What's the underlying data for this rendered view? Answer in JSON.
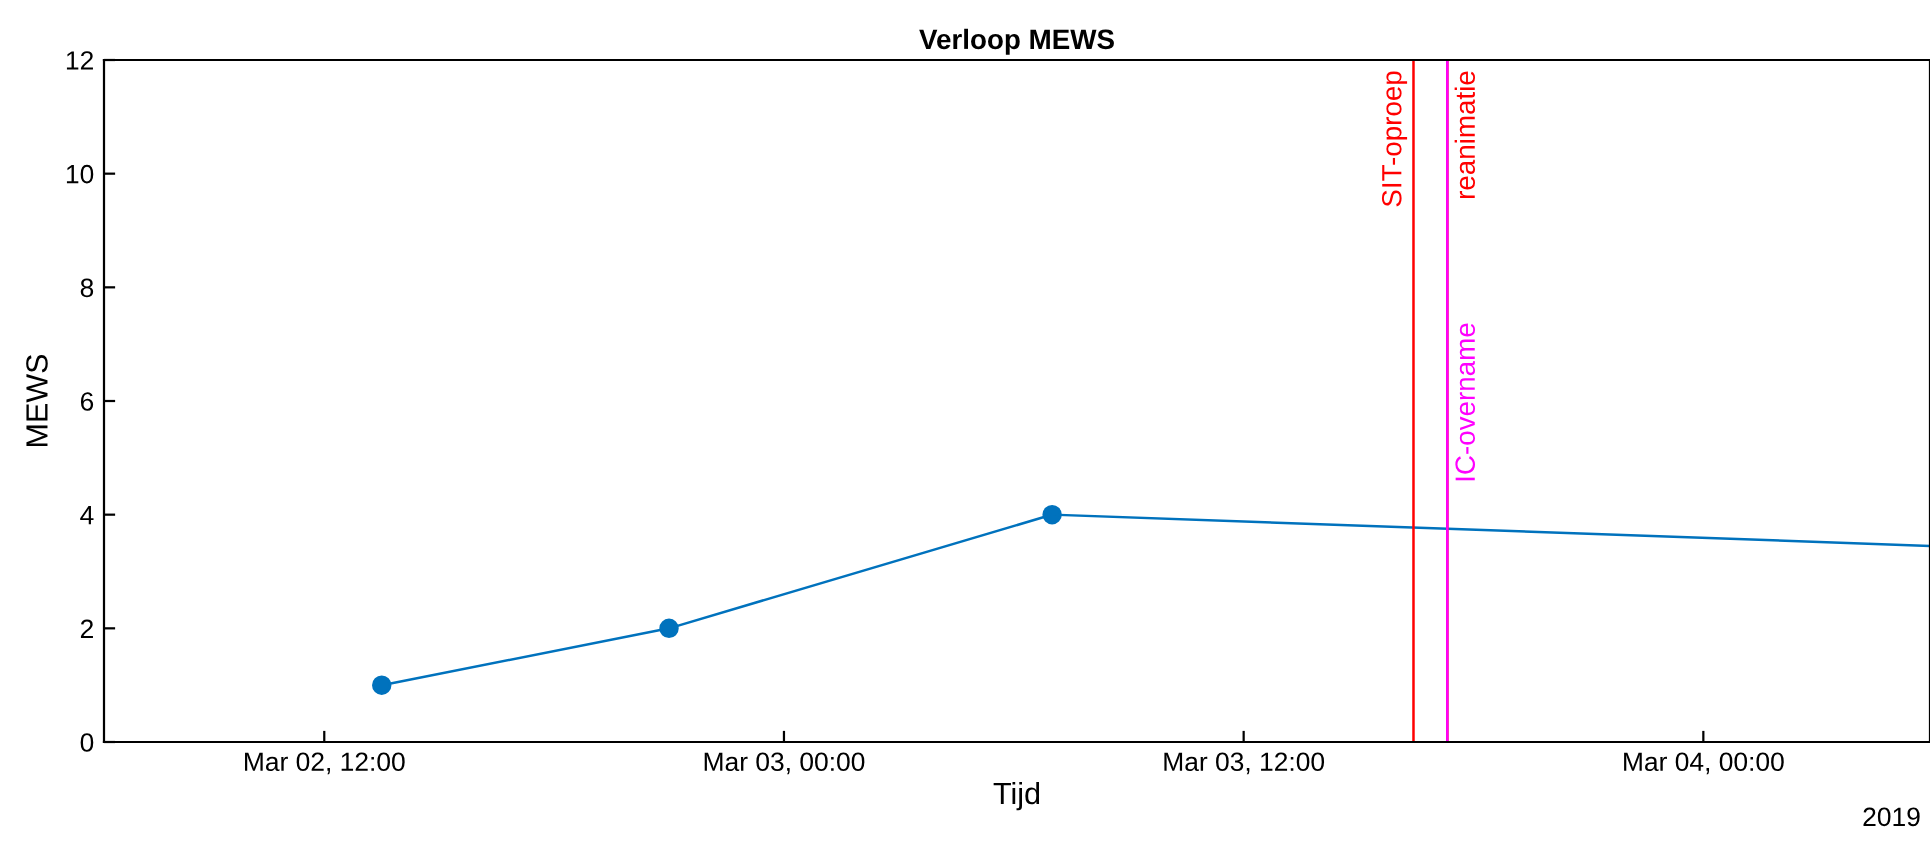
{
  "chart_data": {
    "type": "line",
    "title": "Verloop MEWS",
    "xlabel": "Tijd",
    "ylabel": "MEWS",
    "series": [
      {
        "color": "#0072bd",
        "marker": "circle",
        "x": [
          "2019-03-02T13:30",
          "2019-03-02T21:00",
          "2019-03-03T07:00"
        ],
        "values": [
          1,
          2,
          4
        ]
      },
      {
        "color": "#0072bd",
        "marker": "none",
        "x": [
          "2019-03-03T07:00",
          "2019-03-04T05:55"
        ],
        "values": [
          4,
          3.45
        ]
      }
    ],
    "xlim": [
      "2019-03-02T06:15",
      "2019-03-04T05:55"
    ],
    "xticks": [
      {
        "value": "2019-03-02T12:00",
        "label": "Mar 02, 12:00"
      },
      {
        "value": "2019-03-03T00:00",
        "label": "Mar 03, 00:00"
      },
      {
        "value": "2019-03-03T12:00",
        "label": "Mar 03, 12:00"
      },
      {
        "value": "2019-03-04T00:00",
        "label": "Mar 04, 00:00"
      }
    ],
    "ylim": [
      0,
      12
    ],
    "yticks": [
      0,
      2,
      4,
      6,
      8,
      10,
      12
    ],
    "ref_lines": [
      {
        "axis": "x",
        "value": "2019-03-03T16:26",
        "label": "SIT-oproep",
        "color": "#ff0000"
      },
      {
        "axis": "x",
        "value": "2019-03-03T17:19",
        "label": "reanimatie",
        "color": "#ff0000"
      },
      {
        "axis": "x",
        "value": "2019-03-03T17:19",
        "label": "IC-overname",
        "color": "#ff00ff"
      }
    ],
    "annotations": [
      "2019"
    ],
    "grid": false,
    "legend": false
  }
}
